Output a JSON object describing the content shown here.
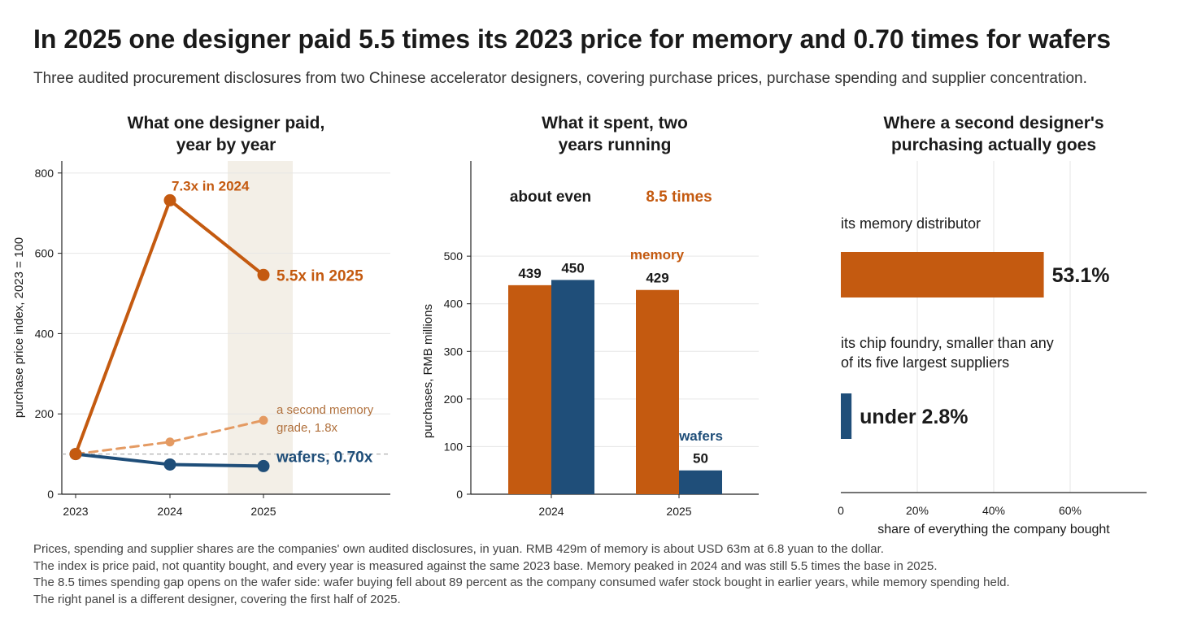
{
  "headline": "In 2025 one designer paid 5.5 times its 2023 price for memory and 0.70 times for wafers",
  "subtitle": "Three audited procurement disclosures from two Chinese accelerator designers, covering purchase prices, purchase spending and supplier concentration.",
  "notes": [
    "Prices, spending and supplier shares are the companies' own audited disclosures, in yuan. RMB 429m of memory is about USD 63m at 6.8 yuan to the dollar.",
    "The index is price paid, not quantity bought, and every year is measured against the same 2023 base. Memory peaked in 2024 and was still 5.5 times the base in 2025.",
    "The 8.5 times spending gap opens on the wafer side: wafer buying fell about 89 percent as the company consumed wafer stock bought in earlier years, while memory spending held.",
    "The right panel is a different designer, covering the first half of 2025."
  ],
  "colors": {
    "memory": "#c45a10",
    "memory_second": "#e49a62",
    "memory_label_light": "#b0703c",
    "wafers": "#1f4e79",
    "highlight_band": "#f3efe7",
    "grid": "#e6e6e6"
  },
  "chart_data": [
    {
      "type": "line",
      "title_lines": [
        "What one designer paid,",
        "year by year"
      ],
      "ylabel": "purchase price index, 2023 = 100",
      "x": [
        "2023",
        "2024",
        "2025"
      ],
      "ylim": [
        0,
        830
      ],
      "yticks": [
        0,
        200,
        400,
        600,
        800
      ],
      "grid": true,
      "highlight_x": "2025",
      "reference_line": 100,
      "series": [
        {
          "key": "memory",
          "values": [
            100,
            732,
            546
          ],
          "style": "solid",
          "color_key": "memory"
        },
        {
          "key": "memory_second",
          "values": [
            100,
            130,
            184
          ],
          "style": "dashed",
          "color_key": "memory_second"
        },
        {
          "key": "wafers",
          "values": [
            100,
            74,
            70
          ],
          "style": "solid",
          "color_key": "wafers"
        }
      ],
      "annotations": {
        "memory_peak": "7.3x in 2024",
        "memory_end": "5.5x in 2025",
        "second_grade": [
          "a second memory",
          "grade, 1.8x"
        ],
        "wafers_end": "wafers, 0.70x"
      }
    },
    {
      "type": "bar",
      "title_lines": [
        "What it spent, two",
        "years running"
      ],
      "ylabel": "purchases, RMB millions",
      "categories": [
        "2024",
        "2025"
      ],
      "ylim": [
        0,
        500
      ],
      "yticks": [
        0,
        100,
        200,
        300,
        400,
        500
      ],
      "grid": true,
      "series": [
        {
          "key": "memory",
          "values": [
            439,
            429
          ],
          "color_key": "memory"
        },
        {
          "key": "wafers",
          "values": [
            450,
            50
          ],
          "color_key": "wafers"
        }
      ],
      "labels": [
        "439",
        "450",
        "429",
        "50"
      ],
      "annotations": {
        "ratio_2024": "about even",
        "ratio_2025": "8.5 times",
        "memory_label": "memory",
        "wafers_label": "wafers"
      }
    },
    {
      "type": "bar",
      "orientation": "horizontal",
      "title_lines": [
        "Where a second designer's",
        "purchasing actually goes"
      ],
      "xlabel": "share of everything the company bought",
      "xlim": [
        0,
        80
      ],
      "xticks": [
        0,
        20,
        40,
        60
      ],
      "xtick_labels": [
        "0",
        "20%",
        "40%",
        "60%"
      ],
      "grid": true,
      "bars": [
        {
          "label_lines": [
            "its memory distributor"
          ],
          "value": 53.1,
          "value_label": "53.1%",
          "color_key": "memory"
        },
        {
          "label_lines": [
            "its chip foundry, smaller than any",
            "of its five largest suppliers"
          ],
          "value": 2.8,
          "value_label": "under 2.8%",
          "color_key": "wafers"
        }
      ]
    }
  ]
}
